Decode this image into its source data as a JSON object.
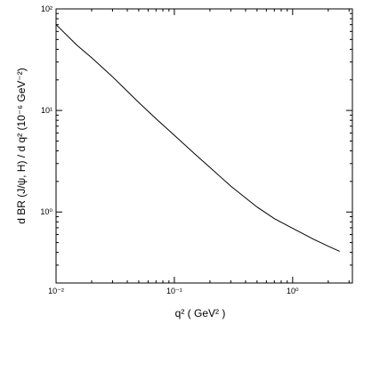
{
  "chart_data": {
    "type": "line",
    "title": "",
    "xlabel": "q² ( GeV² )",
    "ylabel": "d BR (J/ψ, H) / d q²  (10⁻⁶ GeV⁻²)",
    "x_scale": "log",
    "y_scale": "log",
    "xlim": [
      0.01,
      3.2
    ],
    "ylim": [
      0.2,
      100
    ],
    "grid": false,
    "x_ticks": [
      {
        "value": 0.01,
        "label": "10⁻²"
      },
      {
        "value": 0.1,
        "label": "10⁻¹"
      },
      {
        "value": 1,
        "label": "10⁰"
      }
    ],
    "y_ticks": [
      {
        "value": 1,
        "label": "10⁰"
      },
      {
        "value": 10,
        "label": "10¹"
      },
      {
        "value": 100,
        "label": "10²"
      }
    ],
    "series": [
      {
        "x": [
          0.01,
          0.015,
          0.02,
          0.03,
          0.05,
          0.07,
          0.1,
          0.15,
          0.2,
          0.3,
          0.5,
          0.7,
          1.0,
          1.5,
          2.0,
          2.5
        ],
        "y": [
          70,
          44,
          33,
          21.5,
          12,
          8.3,
          5.7,
          3.7,
          2.75,
          1.8,
          1.12,
          0.86,
          0.69,
          0.54,
          0.46,
          0.41
        ]
      }
    ]
  }
}
